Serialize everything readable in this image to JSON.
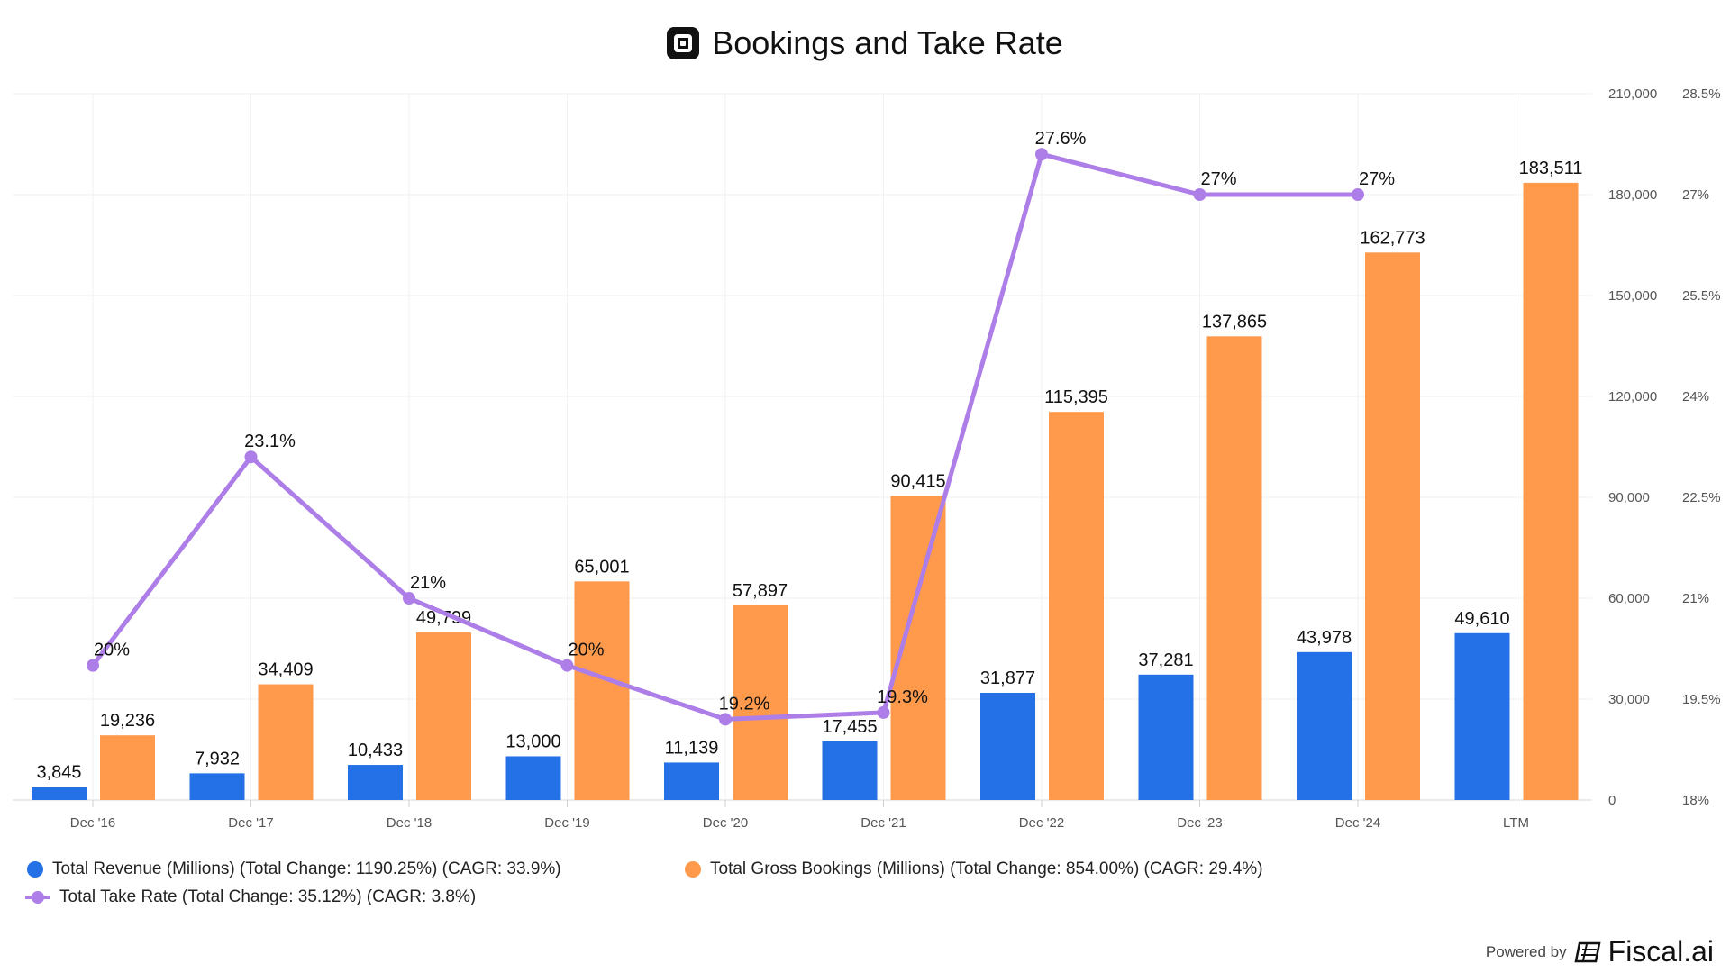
{
  "title": "Bookings and Take Rate",
  "footer": {
    "powered_by": "Powered by",
    "brand": "Fiscal.ai"
  },
  "colors": {
    "revenue": "#2470e6",
    "bookings": "#ff9a4d",
    "take_rate": "#ad7ee8"
  },
  "legend": [
    {
      "label": "Total Revenue (Millions) (Total Change: 1190.25%) (CAGR: 33.9%)"
    },
    {
      "label": "Total Gross Bookings (Millions) (Total Change: 854.00%) (CAGR: 29.4%)"
    },
    {
      "label": "Total Take Rate (Total Change: 35.12%) (CAGR: 3.8%)"
    }
  ],
  "chart_data": {
    "type": "bar",
    "title": "Bookings and Take Rate",
    "categories": [
      "Dec '16",
      "Dec '17",
      "Dec '18",
      "Dec '19",
      "Dec '20",
      "Dec '21",
      "Dec '22",
      "Dec '23",
      "Dec '24",
      "LTM"
    ],
    "series": [
      {
        "name": "Total Revenue (Millions)",
        "type": "bar",
        "axis": "left",
        "values": [
          3845,
          7932,
          10433,
          13000,
          11139,
          17455,
          31877,
          37281,
          43978,
          49610
        ],
        "labels": [
          "3,845",
          "7,932",
          "10,433",
          "13,000",
          "11,139",
          "17,455",
          "31,877",
          "37,281",
          "43,978",
          "49,610"
        ]
      },
      {
        "name": "Total Gross Bookings (Millions)",
        "type": "bar",
        "axis": "left",
        "values": [
          19236,
          34409,
          49799,
          65001,
          57897,
          90415,
          115395,
          137865,
          162773,
          183511
        ],
        "labels": [
          "19,236",
          "34,409",
          "49,799",
          "65,001",
          "57,897",
          "90,415",
          "115,395",
          "137,865",
          "162,773",
          "183,511"
        ]
      },
      {
        "name": "Total Take Rate",
        "type": "line",
        "axis": "right",
        "values": [
          20.0,
          23.1,
          21.0,
          20.0,
          19.2,
          19.3,
          27.6,
          27.0,
          27.0,
          null
        ],
        "labels": [
          "20%",
          "23.1%",
          "21%",
          "20%",
          "19.2%",
          "19.3%",
          "27.6%",
          "27%",
          "27%",
          null
        ]
      }
    ],
    "y_left": {
      "ylim": [
        0,
        210000
      ],
      "ticks": [
        0,
        30000,
        60000,
        90000,
        120000,
        150000,
        180000,
        210000
      ],
      "tick_labels": [
        "0",
        "30,000",
        "60,000",
        "90,000",
        "120,000",
        "150,000",
        "180,000",
        "210,000"
      ]
    },
    "y_right": {
      "ylim": [
        18,
        28.5
      ],
      "ticks": [
        18,
        19.5,
        21,
        22.5,
        24,
        25.5,
        27,
        28.5
      ],
      "tick_labels": [
        "18%",
        "19.5%",
        "21%",
        "22.5%",
        "24%",
        "25.5%",
        "27%",
        "28.5%"
      ]
    },
    "grid": true,
    "legend_position": "bottom-left"
  }
}
